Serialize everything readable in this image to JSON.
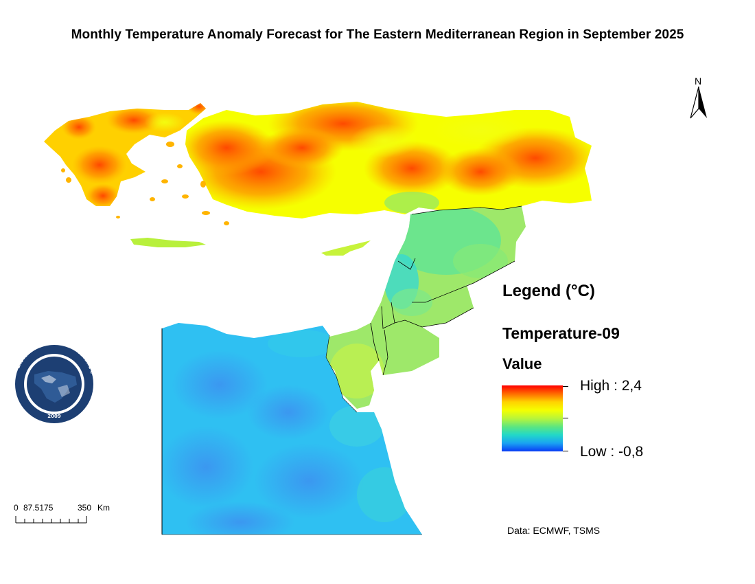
{
  "title": "Monthly Temperature Anomaly Forecast for The Eastern Mediterranean Region in September 2025",
  "north_arrow": {
    "label": "N",
    "icon": "north-arrow-icon"
  },
  "legend": {
    "title": "Legend (°C)",
    "layer": "Temperature-09",
    "field": "Value",
    "high_label": "High : 2,4",
    "low_label": "Low : -0,8",
    "high_value": 2.4,
    "low_value": -0.8,
    "colors": [
      "#ff0000",
      "#ff6a00",
      "#ffd200",
      "#f5ff00",
      "#b9f53a",
      "#5ee67f",
      "#22d8c8",
      "#1aa3f2",
      "#0a3cf5"
    ]
  },
  "scale_bar": {
    "labels": [
      "0",
      "87.5175",
      "350",
      "Km"
    ]
  },
  "credit": "Data: ECMWF, TSMS",
  "logo": {
    "ring_text": "EASTERN MEDITERRANEAN CLIMATE CENTRE",
    "year": "2009"
  }
}
